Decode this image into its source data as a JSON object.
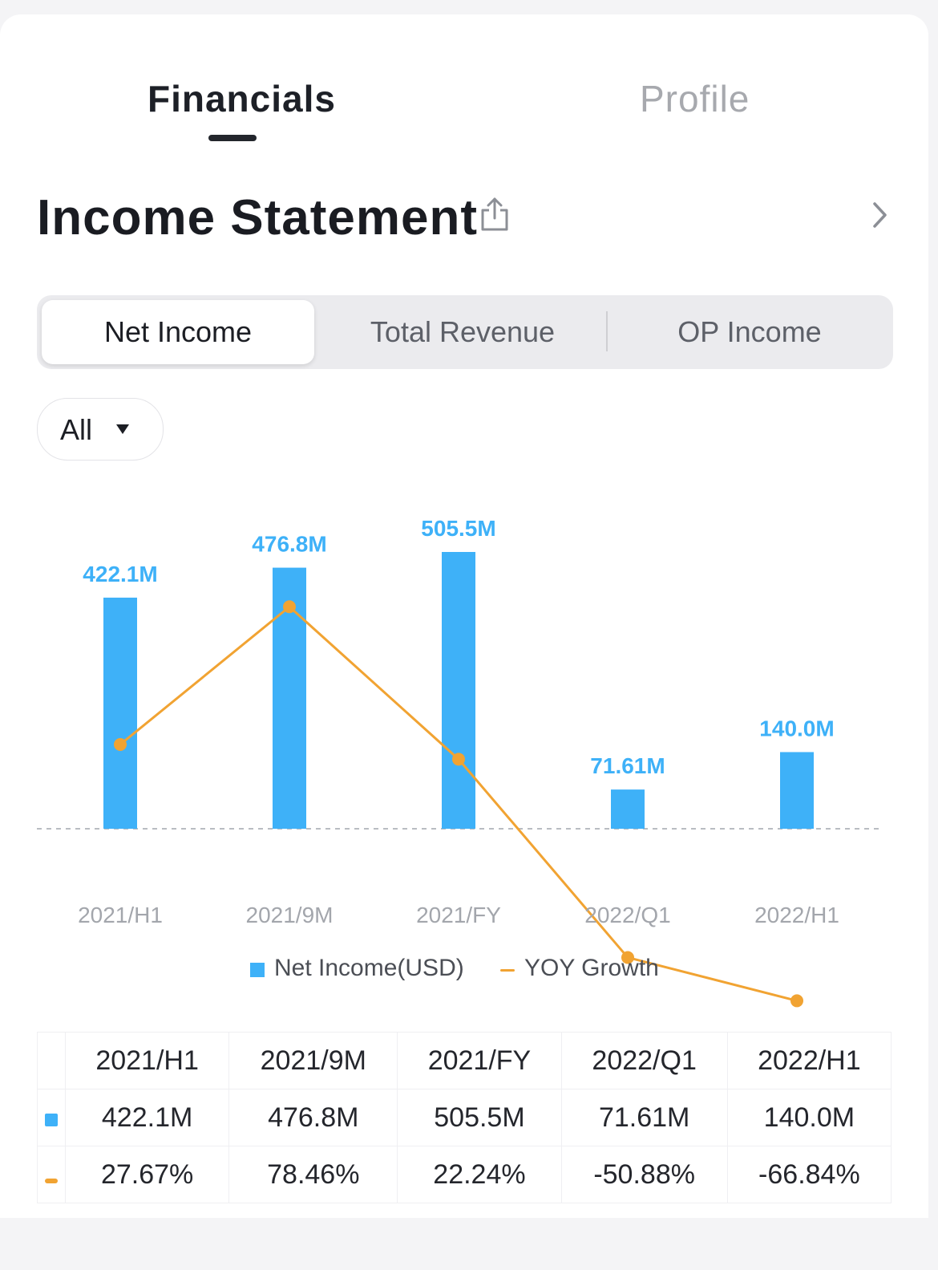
{
  "tabs": {
    "financials": "Financials",
    "profile": "Profile"
  },
  "section": {
    "title": "Income Statement"
  },
  "segment": {
    "net_income": "Net Income",
    "total_revenue": "Total Revenue",
    "op_income": "OP Income"
  },
  "filter": {
    "selected": "All"
  },
  "legend": {
    "bar": "Net Income(USD)",
    "line": "YOY Growth"
  },
  "colors": {
    "bar": "#3eb1f8",
    "line": "#f1a332",
    "positive": "#4fc06d",
    "negative": "#e2615c"
  },
  "chart_data": {
    "type": "bar",
    "categories": [
      "2021/H1",
      "2021/9M",
      "2021/FY",
      "2022/Q1",
      "2022/H1"
    ],
    "series": [
      {
        "name": "Net Income(USD)",
        "type": "bar",
        "values": [
          422.1,
          476.8,
          505.5,
          71.61,
          140.0
        ],
        "labels": [
          "422.1M",
          "476.8M",
          "505.5M",
          "71.61M",
          "140.0M"
        ]
      },
      {
        "name": "YOY Growth",
        "type": "line",
        "values": [
          27.67,
          78.46,
          22.24,
          -50.88,
          -66.84
        ]
      }
    ],
    "legend_position": "bottom"
  },
  "table": {
    "headers": [
      "2021/H1",
      "2021/9M",
      "2021/FY",
      "2022/Q1",
      "2022/H1"
    ],
    "net_income": [
      "422.1M",
      "476.8M",
      "505.5M",
      "71.61M",
      "140.0M"
    ],
    "yoy": [
      "27.67%",
      "78.46%",
      "22.24%",
      "-50.88%",
      "-66.84%"
    ]
  }
}
